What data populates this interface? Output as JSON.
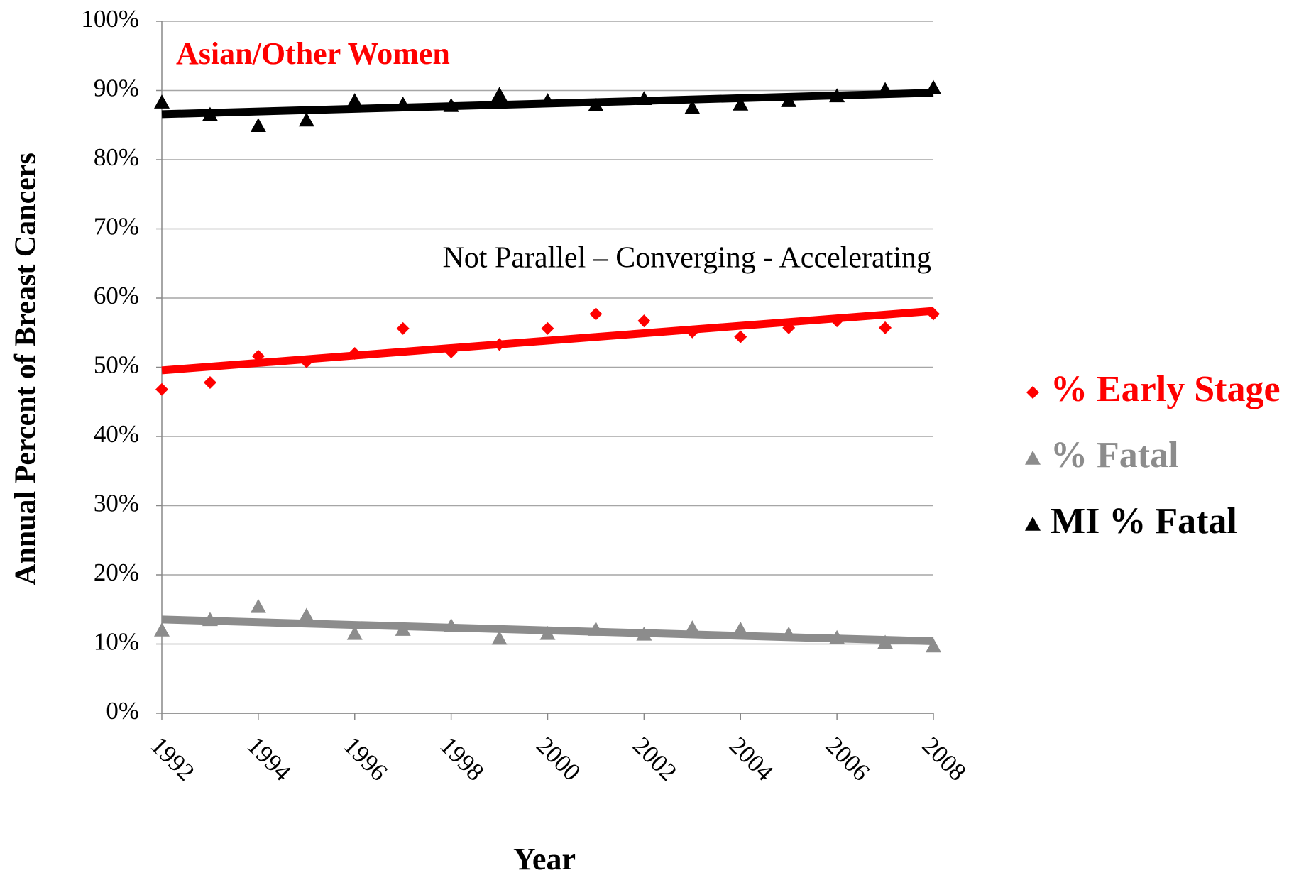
{
  "chart_data": {
    "type": "scatter",
    "annotations": [
      "Asian/Other Women",
      "Not Parallel – Converging - Accelerating"
    ],
    "x_label": "Year",
    "y_label": "Annual Percent of Breast Cancers",
    "x": [
      1992,
      1993,
      1994,
      1995,
      1996,
      1997,
      1998,
      1999,
      2000,
      2001,
      2002,
      2003,
      2004,
      2005,
      2006,
      2007,
      2008
    ],
    "series": [
      {
        "name": "% Early Stage",
        "color": "#ff0000",
        "marker": "diamond",
        "values": [
          46.8,
          47.8,
          51.6,
          50.8,
          52.0,
          55.6,
          52.2,
          53.3,
          55.6,
          57.7,
          56.7,
          55.1,
          54.4,
          55.7,
          56.7,
          55.7,
          57.7
        ]
      },
      {
        "name": "% Fatal",
        "color": "#8c8c8c",
        "marker": "triangle",
        "values": [
          12.0,
          13.5,
          15.4,
          14.1,
          11.5,
          12.1,
          12.6,
          10.8,
          11.5,
          12.1,
          11.4,
          12.3,
          12.1,
          11.4,
          10.9,
          10.2,
          9.7
        ]
      },
      {
        "name": "MI % Fatal",
        "color": "#000000",
        "marker": "triangle",
        "values": [
          88.3,
          86.5,
          84.9,
          85.7,
          88.5,
          88.0,
          87.8,
          89.4,
          88.5,
          87.9,
          88.8,
          87.5,
          88.0,
          88.5,
          89.2,
          90.1,
          90.4
        ]
      }
    ],
    "trendline": true,
    "xlim": [
      1992,
      2008
    ],
    "xticks": [
      1992,
      1994,
      1996,
      1998,
      2000,
      2002,
      2004,
      2006,
      2008
    ],
    "ylim": [
      0,
      100
    ],
    "yticks": [
      {
        "value": 0,
        "label": "0%"
      },
      {
        "value": 10,
        "label": "10%"
      },
      {
        "value": 20,
        "label": "20%"
      },
      {
        "value": 30,
        "label": "30%"
      },
      {
        "value": 40,
        "label": "40%"
      },
      {
        "value": 50,
        "label": "50%"
      },
      {
        "value": 60,
        "label": "60%"
      },
      {
        "value": 70,
        "label": "70%"
      },
      {
        "value": 80,
        "label": "80%"
      },
      {
        "value": 90,
        "label": "90%"
      },
      {
        "value": 100,
        "label": "100%"
      }
    ],
    "grid": true,
    "legend": "right"
  }
}
